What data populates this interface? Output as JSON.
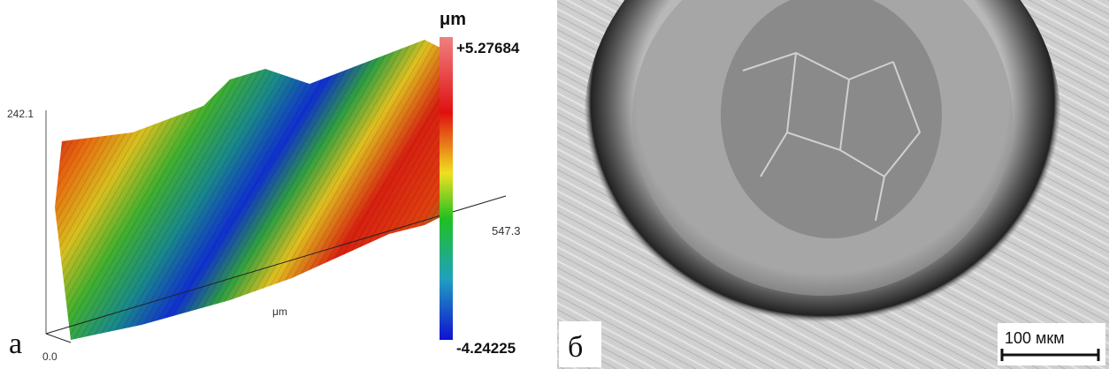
{
  "panel_a": {
    "label": "а",
    "z_axis_max": "242.1",
    "origin": "0.0",
    "x_axis_max": "547.3",
    "axis_unit": "μm",
    "colorbar": {
      "unit": "μm",
      "max": "+5.27684",
      "min": "-4.24225"
    }
  },
  "panel_b": {
    "label": "б",
    "scale_bar": "100 мкм"
  }
}
